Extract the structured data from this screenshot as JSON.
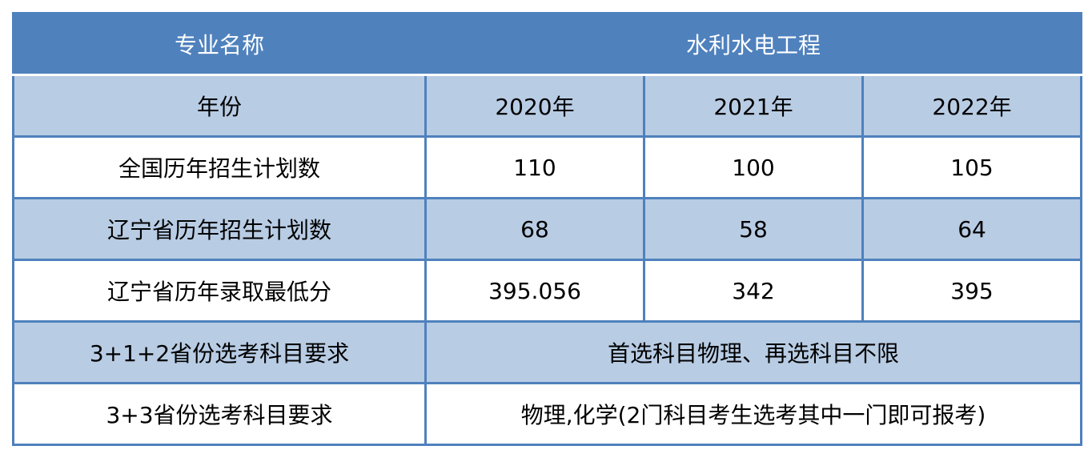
{
  "header": {
    "label": "专业名称",
    "major_name": "水利水电工程"
  },
  "year_row": {
    "label": "年份",
    "years": [
      "2020年",
      "2021年",
      "2022年"
    ]
  },
  "rows": [
    {
      "label": "全国历年招生计划数",
      "values": [
        "110",
        "100",
        "105"
      ]
    },
    {
      "label": "辽宁省历年招生计划数",
      "values": [
        "68",
        "58",
        "64"
      ]
    },
    {
      "label": "辽宁省历年录取最低分",
      "values": [
        "395.056",
        "342",
        "395"
      ]
    }
  ],
  "requirements": [
    {
      "label": "3+1+2省份选考科目要求",
      "value": "首选科目物理、再选科目不限"
    },
    {
      "label": "3+3省份选考科目要求",
      "value": "物理,化学(2门科目考生选考其中一门即可报考)"
    }
  ],
  "colors": {
    "header_bg": "#4f81bd",
    "band_bg": "#b8cce4",
    "border": "#4f81bd"
  }
}
